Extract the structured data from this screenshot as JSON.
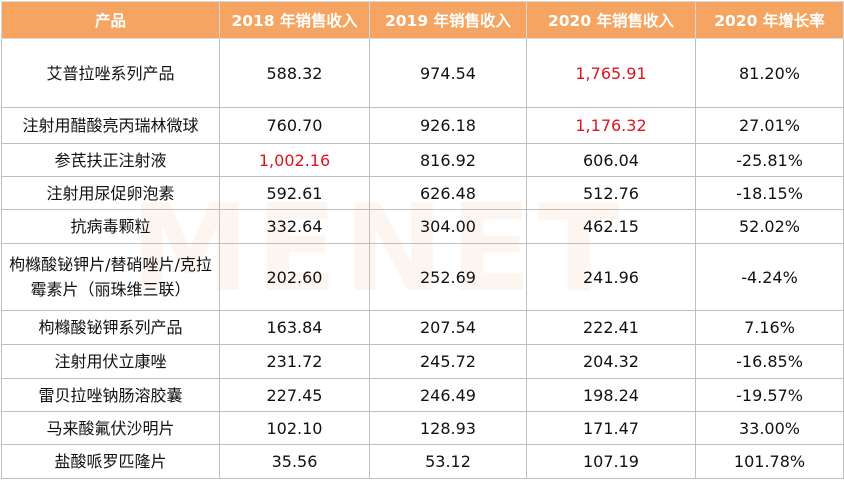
{
  "table": {
    "headers": [
      "产品",
      "2018 年销售收入",
      "2019 年销售收入",
      "2020 年销售收入",
      "2020 年增长率"
    ],
    "rows": [
      {
        "product": "艾普拉唑系列产品",
        "y2018": "588.32",
        "y2019": "974.54",
        "y2020": "1,765.91",
        "growth": "81.20%"
      },
      {
        "product": "注射用醋酸亮丙瑞林微球",
        "y2018": "760.70",
        "y2019": "926.18",
        "y2020": "1,176.32",
        "growth": "27.01%"
      },
      {
        "product": "参芪扶正注射液",
        "y2018": "1,002.16",
        "y2019": "816.92",
        "y2020": "606.04",
        "growth": "-25.81%"
      },
      {
        "product": "注射用尿促卵泡素",
        "y2018": "592.61",
        "y2019": "626.48",
        "y2020": "512.76",
        "growth": "-18.15%"
      },
      {
        "product": "抗病毒颗粒",
        "y2018": "332.64",
        "y2019": "304.00",
        "y2020": "462.15",
        "growth": "52.02%"
      },
      {
        "product": "枸橼酸铋钾片/替硝唑片/克拉霉素片（丽珠维三联）",
        "y2018": "202.60",
        "y2019": "252.69",
        "y2020": "241.96",
        "growth": "-4.24%"
      },
      {
        "product": "枸橼酸铋钾系列产品",
        "y2018": "163.84",
        "y2019": "207.54",
        "y2020": "222.41",
        "growth": "7.16%"
      },
      {
        "product": "注射用伏立康唑",
        "y2018": "231.72",
        "y2019": "245.72",
        "y2020": "204.32",
        "growth": "-16.85%"
      },
      {
        "product": "雷贝拉唑钠肠溶胶囊",
        "y2018": "227.45",
        "y2019": "246.49",
        "y2020": "198.24",
        "growth": "-19.57%"
      },
      {
        "product": "马来酸氟伏沙明片",
        "y2018": "102.10",
        "y2019": "128.93",
        "y2020": "171.47",
        "growth": "33.00%"
      },
      {
        "product": "盐酸哌罗匹隆片",
        "y2018": "35.56",
        "y2019": "53.12",
        "y2020": "107.19",
        "growth": "101.78%"
      }
    ]
  },
  "watermark": "MENET",
  "colors": {
    "header_bg": "#f5a561",
    "highlight_red": "#e0141e"
  }
}
